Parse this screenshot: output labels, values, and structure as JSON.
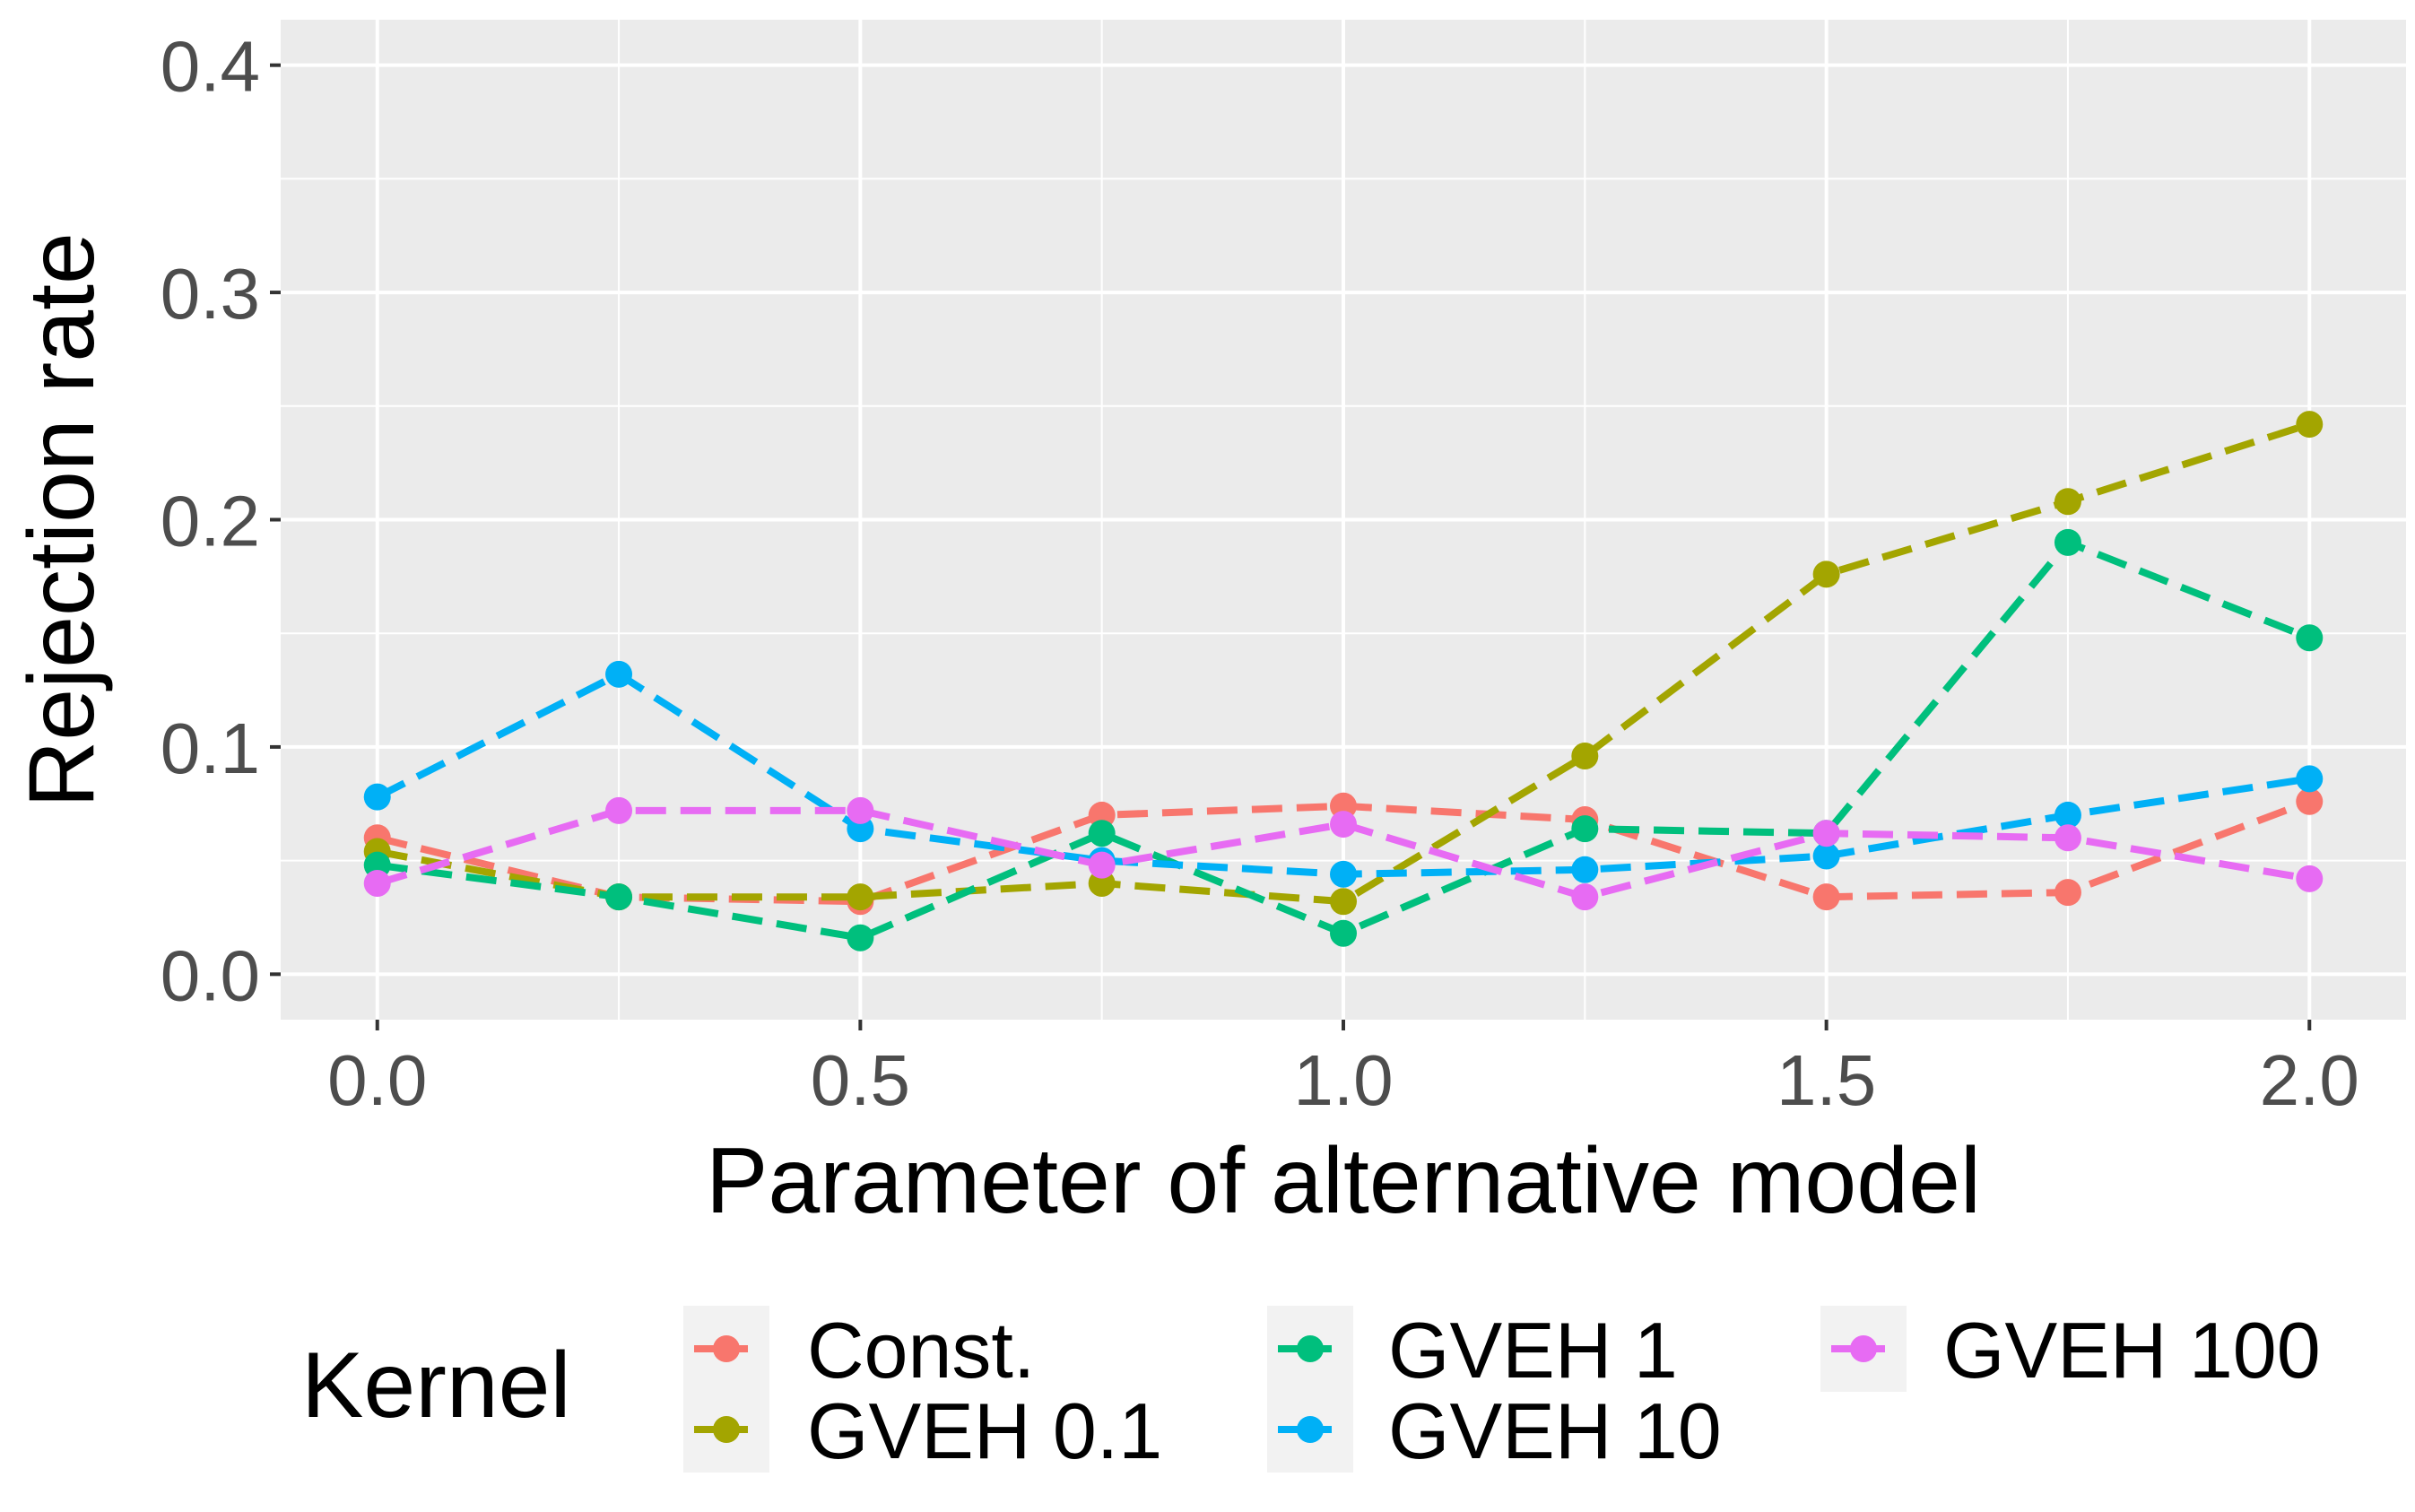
{
  "chart_data": {
    "type": "line",
    "title": "",
    "xlabel": "Parameter of alternative model",
    "ylabel": "Rejection rate",
    "x": [
      0.0,
      0.25,
      0.5,
      0.75,
      1.0,
      1.25,
      1.5,
      1.75,
      2.0
    ],
    "xlim": [
      -0.1,
      2.1
    ],
    "ylim": [
      -0.02,
      0.42
    ],
    "xticks": [
      0.0,
      0.5,
      1.0,
      1.5,
      2.0
    ],
    "xtick_labels": [
      "0.0",
      "0.5",
      "1.0",
      "1.5",
      "2.0"
    ],
    "yticks": [
      0.0,
      0.1,
      0.2,
      0.3,
      0.4
    ],
    "ytick_labels": [
      "0.0",
      "0.1",
      "0.2",
      "0.3",
      "0.4"
    ],
    "grid": true,
    "line_style": "dashed",
    "legend": {
      "title": "Kernel",
      "position": "bottom"
    },
    "series": [
      {
        "name": "Const.",
        "color": "#F8766D",
        "values": [
          0.06,
          0.034,
          0.032,
          0.07,
          0.074,
          0.068,
          0.034,
          0.036,
          0.076
        ]
      },
      {
        "name": "GVEH 0.1",
        "color": "#A3A500",
        "values": [
          0.054,
          0.034,
          0.034,
          0.04,
          0.032,
          0.096,
          0.176,
          0.208,
          0.242
        ]
      },
      {
        "name": "GVEH 1",
        "color": "#00BF7D",
        "values": [
          0.048,
          0.034,
          0.016,
          0.062,
          0.018,
          0.064,
          0.062,
          0.19,
          0.148
        ]
      },
      {
        "name": "GVEH 10",
        "color": "#00B0F6",
        "values": [
          0.078,
          0.132,
          0.064,
          0.05,
          0.044,
          0.046,
          0.052,
          0.07,
          0.086
        ]
      },
      {
        "name": "GVEH 100",
        "color": "#E76BF3",
        "values": [
          0.04,
          0.072,
          0.072,
          0.048,
          0.066,
          0.034,
          0.062,
          0.06,
          0.042
        ]
      }
    ]
  }
}
